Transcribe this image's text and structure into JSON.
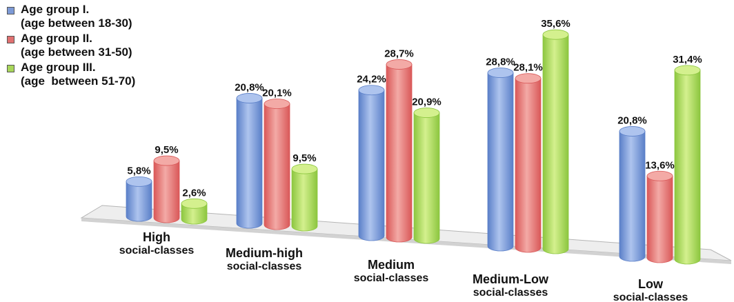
{
  "chart_data": {
    "type": "bar",
    "categories": [
      [
        "High",
        "social-classes"
      ],
      [
        "Medium-high",
        "social-classes"
      ],
      [
        "Medium",
        "social-classes"
      ],
      [
        "Medium-Low",
        "social-classes"
      ],
      [
        "Low",
        "social-classes"
      ]
    ],
    "series": [
      {
        "name_lines": [
          "Age group I.",
          "(age between 18-30)"
        ],
        "color": "#5a7fc8",
        "light": "#aec4ee",
        "values": [
          5.8,
          20.8,
          24.2,
          28.8,
          20.8
        ],
        "labels": [
          "5,8%",
          "20,8%",
          "24,2%",
          "28,8%",
          "20,8%"
        ]
      },
      {
        "name_lines": [
          "Age group II.",
          "(age between 31-50)"
        ],
        "color": "#d95858",
        "light": "#f3aaa6",
        "values": [
          9.5,
          20.1,
          28.7,
          28.1,
          13.6
        ],
        "labels": [
          "9,5%",
          "20,1%",
          "28,7%",
          "28,1%",
          "13,6%"
        ]
      },
      {
        "name_lines": [
          "Age group III.",
          "(age  between 51-70)"
        ],
        "color": "#8cc63f",
        "light": "#d4f08e",
        "values": [
          2.6,
          9.5,
          20.9,
          35.6,
          31.4
        ],
        "labels": [
          "2,6%",
          "9,5%",
          "20,9%",
          "35,6%",
          "31,4%"
        ]
      }
    ],
    "units": "%",
    "legend": "top-left",
    "grid": false
  }
}
